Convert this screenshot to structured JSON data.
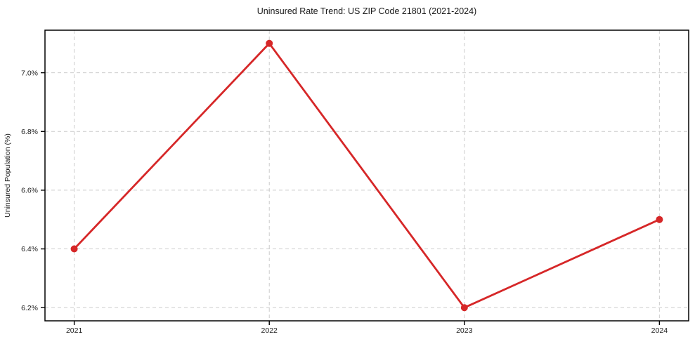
{
  "chart_data": {
    "type": "line",
    "title": "Uninsured Rate Trend: US ZIP Code 21801 (2021-2024)",
    "xlabel": "",
    "ylabel": "Uninsured Population (%)",
    "x": [
      2021,
      2022,
      2023,
      2024
    ],
    "values": [
      6.4,
      7.1,
      6.2,
      6.5
    ],
    "xticklabels": [
      "2021",
      "2022",
      "2023",
      "2024"
    ],
    "yticks": [
      6.2,
      6.4,
      6.6,
      6.8,
      7.0
    ],
    "ytick_suffix": "%",
    "ytick_decimals": 1,
    "xlim": [
      2020.85,
      2024.15
    ],
    "ylim": [
      6.155,
      7.145
    ],
    "grid": true,
    "grid_style": "dashed",
    "legend": false,
    "line_color": "#d62728",
    "marker_color": "#d62728",
    "grid_color": "#cccccc",
    "spine_color": "#000000",
    "text_color": "#1a1a1a",
    "background": "#ffffff"
  }
}
